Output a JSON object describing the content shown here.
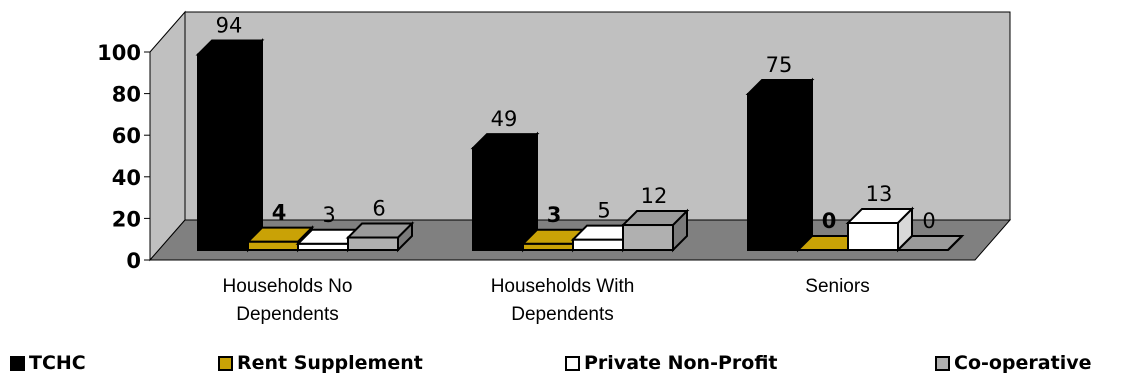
{
  "chart_data": {
    "type": "bar",
    "categories": [
      "Households No Dependents",
      "Households With Dependents",
      "Seniors"
    ],
    "series": [
      {
        "name": "TCHC",
        "values": [
          94,
          49,
          75
        ],
        "color": "#000000"
      },
      {
        "name": "Rent Supplement",
        "values": [
          4,
          3,
          0
        ],
        "color": "#c9a206"
      },
      {
        "name": "Private Non-Profit",
        "values": [
          3,
          5,
          13
        ],
        "color": "#ffffff"
      },
      {
        "name": "Co-operative",
        "values": [
          6,
          12,
          0
        ],
        "color": "#b0b0b0"
      }
    ],
    "ylim": [
      0,
      100
    ],
    "yticks": [
      "0",
      "20",
      "40",
      "60",
      "80",
      "100"
    ],
    "grid": false,
    "legend_position": "bottom",
    "style": "3d-clustered-column"
  },
  "colors": {
    "wall": "#c0c0c0",
    "floor": "#808080"
  }
}
